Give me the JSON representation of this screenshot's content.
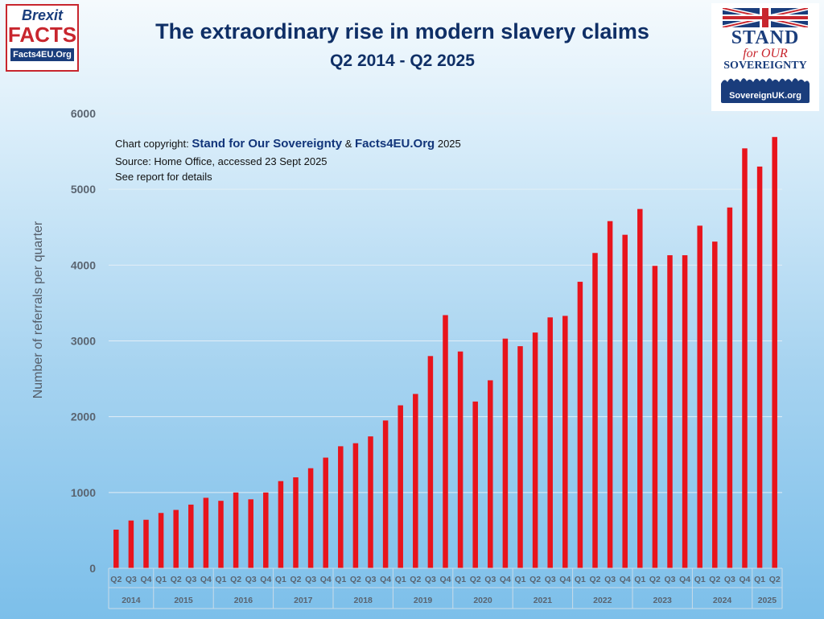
{
  "title": "The extraordinary rise in modern slavery claims",
  "subtitle": "Q2 2014 - Q2 2025",
  "logos": {
    "brexit": {
      "line1": "Brexit",
      "line2": "FACTS",
      "line3": "Facts4EU.Org"
    },
    "stand": {
      "line1": "STAND",
      "line2": "for OUR",
      "line3": "SOVEREIGNTY",
      "line4": "SovereignUK.org"
    }
  },
  "notes": {
    "copyright_prefix": "Chart copyright:",
    "copyright_org1": "Stand for Our Sovereignty",
    "copyright_amp": "&",
    "copyright_org2": "Facts4EU.Org",
    "copyright_year": "2025",
    "source": "Source: Home Office, accessed 23 Sept 2025",
    "details": "See report for details"
  },
  "colors": {
    "bar": "#e8141c",
    "title": "#0f2f66",
    "grid": "#e3eef6",
    "axis_text": "#5a6470"
  },
  "chart_data": {
    "type": "bar",
    "title": "The extraordinary rise in modern slavery claims",
    "subtitle": "Q2 2014 - Q2 2025",
    "xlabel": "",
    "ylabel": "Number of referrals per quarter",
    "ylim": [
      0,
      6000
    ],
    "yticks": [
      0,
      1000,
      2000,
      3000,
      4000,
      5000,
      6000
    ],
    "grid": true,
    "categories": [
      "Q2",
      "Q3",
      "Q4",
      "Q1",
      "Q2",
      "Q3",
      "Q4",
      "Q1",
      "Q2",
      "Q3",
      "Q4",
      "Q1",
      "Q2",
      "Q3",
      "Q4",
      "Q1",
      "Q2",
      "Q3",
      "Q4",
      "Q1",
      "Q2",
      "Q3",
      "Q4",
      "Q1",
      "Q2",
      "Q3",
      "Q4",
      "Q1",
      "Q2",
      "Q3",
      "Q4",
      "Q1",
      "Q2",
      "Q3",
      "Q4",
      "Q1",
      "Q2",
      "Q3",
      "Q4",
      "Q1",
      "Q2",
      "Q3",
      "Q4",
      "Q1",
      "Q2"
    ],
    "groups": [
      {
        "label": "2014",
        "count": 3
      },
      {
        "label": "2015",
        "count": 4
      },
      {
        "label": "2016",
        "count": 4
      },
      {
        "label": "2017",
        "count": 4
      },
      {
        "label": "2018",
        "count": 4
      },
      {
        "label": "2019",
        "count": 4
      },
      {
        "label": "2020",
        "count": 4
      },
      {
        "label": "2021",
        "count": 4
      },
      {
        "label": "2022",
        "count": 4
      },
      {
        "label": "2023",
        "count": 4
      },
      {
        "label": "2024",
        "count": 4
      },
      {
        "label": "2025",
        "count": 2
      }
    ],
    "values": [
      510,
      630,
      640,
      730,
      770,
      840,
      930,
      890,
      1000,
      910,
      1000,
      1150,
      1200,
      1320,
      1460,
      1610,
      1650,
      1740,
      1950,
      2150,
      2300,
      2800,
      3340,
      2860,
      2200,
      2480,
      3030,
      2930,
      3110,
      3310,
      3330,
      3780,
      4160,
      4580,
      4400,
      4740,
      3990,
      4130,
      4130,
      4520,
      4310,
      4760,
      5540,
      5300,
      5690
    ]
  }
}
